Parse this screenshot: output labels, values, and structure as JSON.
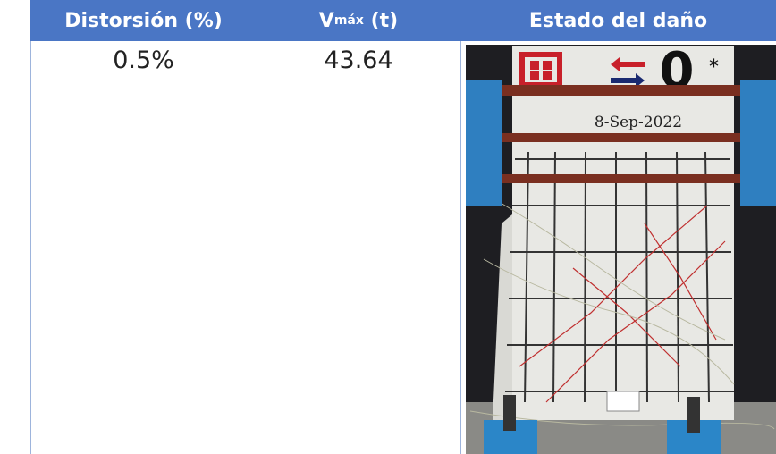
{
  "table": {
    "header": [
      "Distorsión (%)",
      {
        "main": "V",
        "sub": "máx",
        "unit": "(t)"
      },
      "Estado del daño"
    ],
    "rows": [
      [
        "0.5%",
        "43.64"
      ]
    ]
  },
  "photo": {
    "date": "8-Sep-2022",
    "mark": "0",
    "star": "*"
  }
}
